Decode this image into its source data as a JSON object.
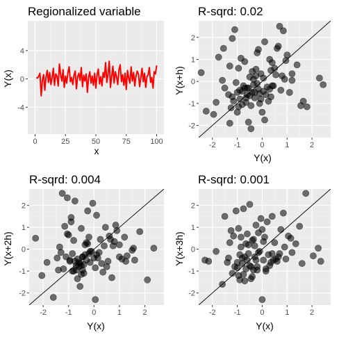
{
  "chart_data": [
    {
      "type": "line",
      "title": "Regionalized variable",
      "xlabel": "x",
      "ylabel": "Y(x)",
      "xlim": [
        -6,
        106
      ],
      "ylim": [
        -7.8,
        8.2
      ],
      "x_ticks": [
        "0",
        "25",
        "50",
        "75",
        "100"
      ],
      "x_tick_values": [
        0,
        25,
        50,
        75,
        100
      ],
      "y_ticks": [
        "-4",
        "0",
        "4"
      ],
      "y_tick_values": [
        -4,
        0,
        4
      ],
      "grid": true,
      "color": "#ff0000",
      "series": [
        {
          "x": [
            1,
            2,
            3,
            4,
            5,
            6,
            7,
            8,
            9,
            10,
            11,
            12,
            13,
            14,
            15,
            16,
            17,
            18,
            19,
            20,
            21,
            22,
            23,
            24,
            25,
            26,
            27,
            28,
            29,
            30,
            31,
            32,
            33,
            34,
            35,
            36,
            37,
            38,
            39,
            40,
            41,
            42,
            43,
            44,
            45,
            46,
            47,
            48,
            49,
            50,
            51,
            52,
            53,
            54,
            55,
            56,
            57,
            58,
            59,
            60,
            61,
            62,
            63,
            64,
            65,
            66,
            67,
            68,
            69,
            70,
            71,
            72,
            73,
            74,
            75,
            76,
            77,
            78,
            79,
            80,
            81,
            82,
            83,
            84,
            85,
            86,
            87,
            88,
            89,
            90,
            91,
            92,
            93,
            94,
            95,
            96,
            97,
            98,
            99,
            100
          ],
          "y": [
            0.2,
            0.1,
            0.4,
            0.8,
            -2.4,
            -0.2,
            0.6,
            -1.6,
            0.3,
            1.2,
            -0.5,
            0.9,
            -0.8,
            0.2,
            1.5,
            -0.9,
            0.7,
            0.4,
            -1.0,
            2.1,
            0.6,
            -0.3,
            1.3,
            -1.2,
            0.4,
            -0.6,
            0.9,
            1.7,
            -0.4,
            0.2,
            -0.8,
            0.5,
            1.1,
            -1.4,
            0.3,
            0.8,
            -0.2,
            1.6,
            -1.1,
            0.5,
            -0.3,
            0.7,
            -1.9,
            0.2,
            1.0,
            -0.6,
            0.4,
            -0.9,
            0.8,
            -1.3,
            0.6,
            1.4,
            -0.7,
            0.3,
            -1.0,
            0.9,
            0.2,
            2.3,
            -0.5,
            0.7,
            2.5,
            -1.2,
            0.4,
            1.8,
            -0.6,
            1.0,
            0.3,
            -0.8,
            1.3,
            2.0,
            -0.4,
            0.6,
            -0.9,
            0.8,
            -1.5,
            1.2,
            0.1,
            -0.6,
            1.7,
            -0.3,
            0.9,
            -1.0,
            0.4,
            1.1,
            0.7,
            -1.1,
            0.2,
            1.5,
            -0.4,
            0.8,
            -1.2,
            0.3,
            0.6,
            1.6,
            -0.5,
            0.2,
            -1.3,
            1.0,
            0.7,
            1.9
          ]
        }
      ]
    },
    {
      "type": "scatter",
      "title": "R-sqrd: 0.02",
      "xlabel": "Y(x)",
      "ylabel": "Y(x+h)",
      "xlim": [
        -2.55,
        2.75
      ],
      "ylim": [
        -2.55,
        2.75
      ],
      "x_ticks": [
        "-2",
        "-1",
        "0",
        "1",
        "2"
      ],
      "x_tick_values": [
        -2,
        -1,
        0,
        1,
        2
      ],
      "y_ticks": [
        "-2",
        "-1",
        "0",
        "1",
        "2"
      ],
      "y_tick_values": [
        -2,
        -1,
        0,
        1,
        2
      ],
      "grid": true,
      "reference_line": "y = x",
      "x": [
        -2.45,
        -2.25,
        -1.95,
        -1.85,
        -1.75,
        -1.6,
        -1.55,
        -1.5,
        -1.35,
        -1.3,
        -1.25,
        -1.2,
        -1.15,
        -1.1,
        -1.05,
        -1.0,
        -0.95,
        -0.9,
        -0.85,
        -0.8,
        -0.75,
        -0.7,
        -0.65,
        -0.6,
        -0.55,
        -0.5,
        -0.45,
        -0.4,
        -0.35,
        -0.3,
        -0.25,
        -0.2,
        -0.15,
        -0.1,
        -0.05,
        0.0,
        0.05,
        0.1,
        0.15,
        0.2,
        0.3,
        0.35,
        0.4,
        0.5,
        0.55,
        0.6,
        0.7,
        0.75,
        0.85,
        0.9,
        1.0,
        1.1,
        1.2,
        1.4,
        1.55,
        1.65,
        1.8,
        2.3,
        2.45,
        -1.2,
        -0.9,
        -0.6,
        -0.3,
        0.1,
        0.4,
        -0.8,
        -0.5,
        -0.2,
        0.25,
        0.65,
        -1.0,
        -0.7,
        -0.4,
        -0.1,
        0.3,
        0.8,
        1.2,
        -0.95,
        -0.55,
        -0.25,
        0.05,
        0.45,
        -1.3,
        -0.65,
        -0.35,
        -0.05,
        0.35,
        0.95,
        -0.45,
        -0.15
      ],
      "y": [
        0.4,
        -1.35,
        -1.5,
        -0.95,
        1.1,
        0.05,
        1.5,
        -0.3,
        -0.6,
        0.7,
        -1.2,
        1.95,
        -0.9,
        2.35,
        -0.05,
        -1.4,
        0.6,
        -0.8,
        1.05,
        -0.45,
        -0.2,
        0.9,
        -0.95,
        -0.6,
        -0.3,
        0.2,
        -1.1,
        -0.5,
        -0.15,
        -0.75,
        0.55,
        1.3,
        -0.35,
        -1.0,
        0.35,
        -1.4,
        0.15,
        1.8,
        -0.6,
        -0.25,
        1.0,
        -0.7,
        -0.2,
        0.6,
        0.3,
        1.5,
        2.5,
        -0.4,
        2.3,
        0.1,
        1.2,
        -0.5,
        0.35,
        0.75,
        -1.1,
        -0.9,
        -1.15,
        0.15,
        -0.15,
        -0.7,
        -0.4,
        -0.3,
        -0.5,
        -1.75,
        0.85,
        -1.05,
        -0.65,
        -0.1,
        -0.9,
        1.6,
        -0.5,
        -0.3,
        0.45,
        -0.55,
        -0.35,
        0.25,
        0.05,
        -1.15,
        -1.85,
        0.25,
        -0.45,
        -0.2,
        -1.9,
        -0.75,
        0.1,
        -0.8,
        0.5,
        0.95,
        -2.15,
        1.45
      ]
    },
    {
      "type": "scatter",
      "title": "R-sqrd: 0.004",
      "xlabel": "Y(x)",
      "ylabel": "Y(x+2h)",
      "xlim": [
        -2.55,
        2.75
      ],
      "ylim": [
        -2.55,
        2.75
      ],
      "x_ticks": [
        "-2",
        "-1",
        "0",
        "1",
        "2"
      ],
      "x_tick_values": [
        -2,
        -1,
        0,
        1,
        2
      ],
      "y_ticks": [
        "-2",
        "-1",
        "0",
        "1",
        "2"
      ],
      "y_tick_values": [
        -2,
        -1,
        0,
        1,
        2
      ],
      "grid": true,
      "reference_line": "y = x",
      "x": [
        -2.3,
        -2.05,
        -1.85,
        -1.6,
        -1.45,
        -1.35,
        -1.25,
        -1.2,
        -1.15,
        -1.1,
        -1.05,
        -1.0,
        -0.95,
        -0.9,
        -0.85,
        -0.8,
        -0.75,
        -0.7,
        -0.65,
        -0.6,
        -0.55,
        -0.5,
        -0.45,
        -0.4,
        -0.35,
        -0.3,
        -0.25,
        -0.2,
        -0.15,
        -0.1,
        -0.05,
        0.0,
        0.05,
        0.1,
        0.2,
        0.3,
        0.4,
        0.5,
        0.6,
        0.7,
        0.8,
        0.9,
        1.0,
        1.1,
        1.2,
        1.3,
        1.5,
        1.6,
        1.8,
        2.1,
        2.35,
        -1.3,
        -0.95,
        -0.7,
        -0.55,
        -0.45,
        -0.35,
        -0.25,
        0.15,
        0.45,
        -1.05,
        -0.85,
        -0.6,
        -0.5,
        -0.4,
        0.25,
        0.55,
        0.85,
        -0.8,
        -0.65,
        -0.3,
        0.35,
        0.75,
        1.25,
        -1.4,
        -0.15,
        0.1,
        0.65,
        -0.9,
        -0.5,
        -0.2,
        0.05,
        1.0,
        1.55,
        -0.75,
        -0.45
      ],
      "y": [
        0.5,
        -1.2,
        -0.6,
        -2.2,
        -0.4,
        0.1,
        2.55,
        -0.9,
        1.05,
        -0.35,
        2.35,
        0.65,
        -0.55,
        1.25,
        -1.0,
        0.4,
        2.2,
        -0.75,
        -1.35,
        -0.8,
        -1.7,
        0.95,
        -0.35,
        -1.1,
        0.2,
        -0.5,
        1.75,
        -0.2,
        -0.6,
        -0.1,
        2.1,
        -0.4,
        -2.3,
        1.55,
        -0.15,
        -0.65,
        0.15,
        -0.8,
        0.6,
        -1.3,
        0.35,
        0.85,
        0.2,
        -0.45,
        0.55,
        -0.3,
        -0.05,
        -0.5,
        0.8,
        -1.4,
        0.05,
        -0.15,
        -0.5,
        -0.95,
        -0.65,
        -0.95,
        -0.25,
        0.25,
        -0.4,
        1.0,
        0.7,
        -0.2,
        -0.6,
        -1.15,
        -0.7,
        0.45,
        -0.55,
        1.1,
        -1.0,
        -0.45,
        0.3,
        -1.05,
        0.15,
        -0.55,
        -0.95,
        -0.1,
        -0.25,
        0.45,
        1.45,
        -0.75,
        0.55,
        -0.85,
        -0.35,
        0.05,
        -0.55,
        -0.35
      ]
    },
    {
      "type": "scatter",
      "title": "R-sqrd: 0.001",
      "xlabel": "Y(x)",
      "ylabel": "Y(x+3h)",
      "xlim": [
        -2.55,
        2.75
      ],
      "ylim": [
        -2.55,
        2.75
      ],
      "x_ticks": [
        "-2",
        "-1",
        "0",
        "1",
        "2"
      ],
      "x_tick_values": [
        -2,
        -1,
        0,
        1,
        2
      ],
      "y_ticks": [
        "-2",
        "-1",
        "0",
        "1",
        "2"
      ],
      "y_tick_values": [
        -2,
        -1,
        0,
        1,
        2
      ],
      "grid": true,
      "reference_line": "y = x",
      "x": [
        -2.3,
        -2.15,
        -1.85,
        -1.6,
        -1.5,
        -1.35,
        -1.3,
        -1.2,
        -1.15,
        -1.1,
        -1.05,
        -1.0,
        -0.95,
        -0.9,
        -0.85,
        -0.8,
        -0.75,
        -0.7,
        -0.65,
        -0.6,
        -0.55,
        -0.5,
        -0.45,
        -0.4,
        -0.35,
        -0.3,
        -0.25,
        -0.2,
        -0.15,
        -0.1,
        -0.05,
        0.0,
        0.05,
        0.1,
        0.15,
        0.2,
        0.3,
        0.4,
        0.5,
        0.6,
        0.75,
        0.85,
        0.95,
        1.05,
        1.2,
        1.35,
        1.5,
        1.6,
        1.75,
        2.05,
        2.25,
        2.35,
        -1.25,
        -0.95,
        -0.8,
        -0.6,
        -0.45,
        -0.35,
        -0.15,
        0.05,
        0.35,
        0.7,
        -1.0,
        -0.7,
        -0.5,
        -0.3,
        0.0,
        0.45,
        0.9,
        1.15,
        -0.85,
        -0.55,
        -0.2,
        0.25,
        0.55,
        -1.4,
        -0.75,
        -0.4,
        0.15,
        0.65,
        -0.9,
        -0.65,
        -0.25,
        0.4
      ],
      "y": [
        -0.5,
        -0.55,
        -0.1,
        -1.6,
        1.5,
        -0.4,
        0.3,
        -1.1,
        0.6,
        -0.8,
        1.75,
        -0.6,
        0.95,
        -0.25,
        0.1,
        -0.65,
        1.85,
        -1.45,
        -0.9,
        -0.5,
        0.2,
        2.05,
        -0.8,
        -1.25,
        0.45,
        -0.35,
        1.1,
        -0.95,
        0.75,
        -0.1,
        1.4,
        -2.3,
        -0.5,
        0.55,
        -1.0,
        1.25,
        -0.75,
        -0.2,
        0.3,
        -0.55,
        0.9,
        1.65,
        -0.45,
        0.6,
        -0.15,
        0.25,
        1.05,
        -0.65,
        2.55,
        -0.3,
        0.05,
        -0.55,
        0.85,
        -1.2,
        -0.4,
        0.7,
        -1.35,
        -0.95,
        -0.15,
        0.35,
        -0.6,
        -0.2,
        -0.85,
        -0.35,
        -0.75,
        0.15,
        0.9,
        -0.5,
        0.1,
        0.5,
        0.55,
        -0.2,
        -0.8,
        -0.25,
        -0.45,
        -0.6,
        -1.15,
        0.4,
        -0.9,
        -0.35,
        -1.4,
        0.25,
        -0.5,
        1.5
      ]
    }
  ]
}
